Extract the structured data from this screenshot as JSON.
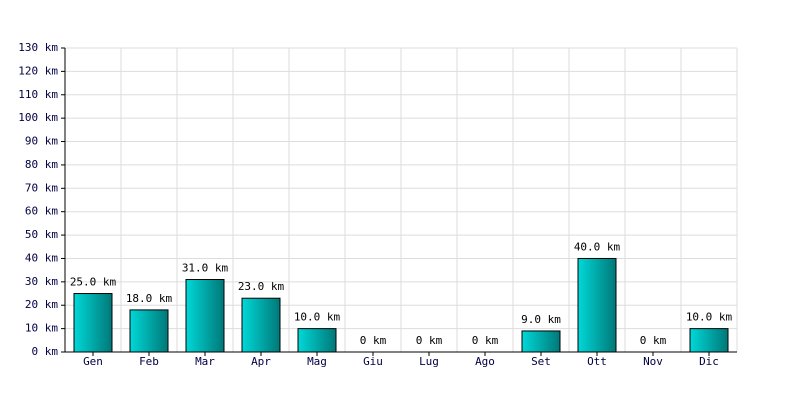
{
  "chart_data": {
    "type": "bar",
    "categories": [
      "Gen",
      "Feb",
      "Mar",
      "Apr",
      "Mag",
      "Giu",
      "Lug",
      "Ago",
      "Set",
      "Ott",
      "Nov",
      "Dic"
    ],
    "values": [
      25,
      18,
      31,
      23,
      10,
      0,
      0,
      0,
      9,
      40,
      0,
      10
    ],
    "value_labels": [
      "25.0 km",
      "18.0 km",
      "31.0 km",
      "23.0 km",
      "10.0 km",
      "0 km",
      "0 km",
      "0 km",
      "9.0 km",
      "40.0 km",
      "0 km",
      "10.0 km"
    ],
    "color": "#00d8d8",
    "ylim": [
      0,
      130
    ],
    "yticks": [
      {
        "value": 0,
        "label": "0 km"
      },
      {
        "value": 10,
        "label": "10 km"
      },
      {
        "value": 20,
        "label": "20 km"
      },
      {
        "value": 30,
        "label": "30 km"
      },
      {
        "value": 40,
        "label": "40 km"
      },
      {
        "value": 50,
        "label": "50 km"
      },
      {
        "value": 60,
        "label": "60 km"
      },
      {
        "value": 70,
        "label": "70 km"
      },
      {
        "value": 80,
        "label": "80 km"
      },
      {
        "value": 90,
        "label": "90 km"
      },
      {
        "value": 100,
        "label": "100 km"
      },
      {
        "value": 110,
        "label": "110 km"
      },
      {
        "value": 120,
        "label": "120 km"
      },
      {
        "value": 130,
        "label": "130 km"
      }
    ],
    "grid": true
  }
}
